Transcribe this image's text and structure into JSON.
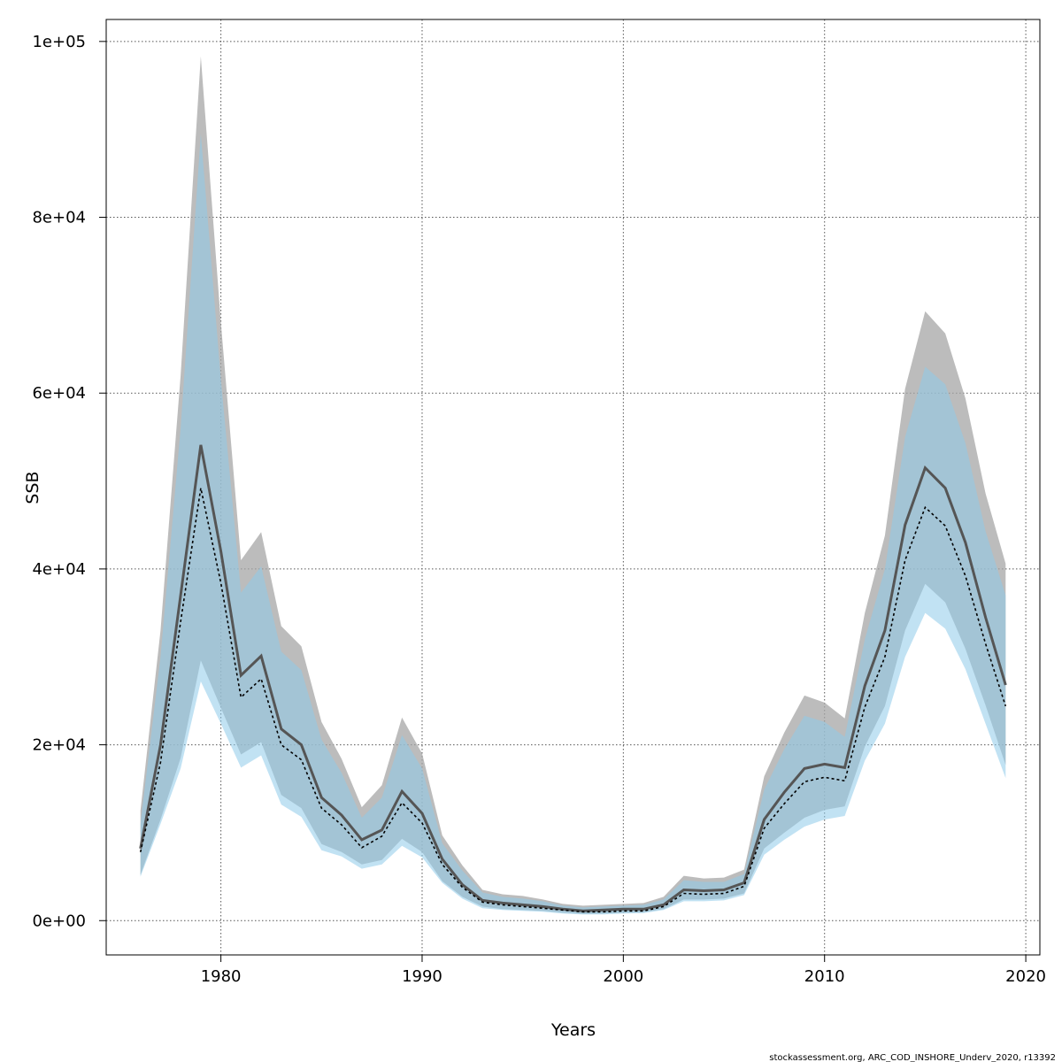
{
  "chart_data": {
    "type": "area",
    "xlabel": "Years",
    "ylabel": "SSB",
    "xlim": [
      1974.3,
      2020.7
    ],
    "ylim": [
      -3900,
      102500
    ],
    "grid": true,
    "x_ticks": [
      1980,
      1990,
      2000,
      2010,
      2020
    ],
    "x_tick_labels": [
      "1980",
      "1990",
      "2000",
      "2010",
      "2020"
    ],
    "y_ticks": [
      0,
      20000,
      40000,
      60000,
      80000,
      100000
    ],
    "y_tick_labels": [
      "0e+00",
      "2e+04",
      "4e+04",
      "6e+04",
      "8e+04",
      "1e+05"
    ],
    "x": [
      1976,
      1977,
      1978,
      1979,
      1980,
      1981,
      1982,
      1983,
      1984,
      1985,
      1986,
      1987,
      1988,
      1989,
      1990,
      1991,
      1992,
      1993,
      1994,
      1995,
      1996,
      1997,
      1998,
      1999,
      2000,
      2001,
      2002,
      2003,
      2004,
      2005,
      2006,
      2007,
      2008,
      2009,
      2010,
      2011,
      2012,
      2013,
      2014,
      2015,
      2016,
      2017,
      2018,
      2019
    ],
    "series": [
      {
        "values": [
          8200,
          20000,
          37000,
          54100,
          42000,
          27900,
          30100,
          21800,
          20000,
          14000,
          12000,
          9200,
          10300,
          14700,
          12200,
          7000,
          4100,
          2300,
          2000,
          1800,
          1600,
          1300,
          1100,
          1200,
          1300,
          1300,
          1800,
          3500,
          3400,
          3500,
          4300,
          11500,
          14600,
          17300,
          17800,
          17400,
          26700,
          33000,
          45000,
          51500,
          49200,
          43000,
          34500,
          26800
        ],
        "lower": [
          5200,
          11500,
          18500,
          29600,
          24200,
          18900,
          20300,
          14300,
          12800,
          8700,
          7800,
          6400,
          6900,
          9300,
          7800,
          4500,
          2700,
          1600,
          1300,
          1200,
          1100,
          900,
          750,
          800,
          900,
          950,
          1300,
          2400,
          2400,
          2500,
          3100,
          8200,
          10000,
          11700,
          12600,
          13000,
          19800,
          24400,
          33000,
          38300,
          36200,
          30900,
          24500,
          17700
        ],
        "upper": [
          12500,
          33000,
          62000,
          98300,
          68000,
          41000,
          44200,
          33500,
          31200,
          22600,
          18400,
          12900,
          15400,
          23100,
          19000,
          9700,
          6300,
          3500,
          3000,
          2800,
          2400,
          1900,
          1700,
          1800,
          1900,
          2000,
          2700,
          5100,
          4800,
          4900,
          5800,
          16400,
          21400,
          25600,
          24800,
          23000,
          35000,
          43800,
          60500,
          69300,
          66800,
          59400,
          48600,
          40600
        ]
      },
      {
        "values": [
          7800,
          18000,
          34000,
          49200,
          38400,
          25400,
          27500,
          20000,
          18300,
          12800,
          10900,
          8300,
          9600,
          13400,
          11100,
          6400,
          3800,
          2100,
          1800,
          1600,
          1400,
          1200,
          1000,
          1000,
          1100,
          1100,
          1600,
          3100,
          3000,
          3100,
          3900,
          10500,
          13300,
          15800,
          16300,
          15900,
          24300,
          30000,
          41000,
          47000,
          44900,
          39200,
          31500,
          24400
        ],
        "lower": [
          5000,
          11000,
          17300,
          27200,
          22400,
          17400,
          18800,
          13200,
          11800,
          8000,
          7300,
          5900,
          6400,
          8500,
          7200,
          4300,
          2500,
          1400,
          1200,
          1100,
          1000,
          800,
          700,
          700,
          800,
          850,
          1200,
          2200,
          2200,
          2300,
          2900,
          7500,
          9200,
          10700,
          11500,
          11900,
          18200,
          22400,
          30000,
          35000,
          33200,
          28600,
          22400,
          16200
        ],
        "upper": [
          11000,
          30000,
          56000,
          89500,
          61500,
          37300,
          40300,
          30600,
          28500,
          20600,
          16800,
          11700,
          14000,
          21100,
          17300,
          8800,
          5700,
          3200,
          2700,
          2500,
          2200,
          1700,
          1500,
          1600,
          1700,
          1800,
          2400,
          4600,
          4400,
          4400,
          5300,
          14900,
          19500,
          23300,
          22600,
          20900,
          32000,
          40000,
          55000,
          63000,
          61000,
          54300,
          44300,
          37000
        ]
      }
    ],
    "credit": "stockassessment.org, ARC_COD_INSHORE_Underv_2020, r13392"
  },
  "colors": {
    "band1": "#a6a6a6",
    "band2": "#8ecbea",
    "line1": "#555555",
    "line2": "#000000"
  }
}
